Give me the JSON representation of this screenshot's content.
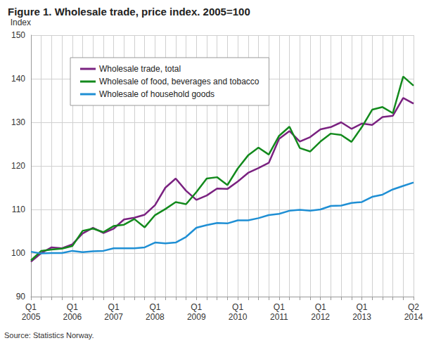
{
  "chart_data": {
    "type": "line",
    "title": "Figure 1. Wholesale trade, price index. 2005=100",
    "y_label": "Index",
    "source": "Source: Statistics Norway.",
    "categories": [
      "Q1\n2005",
      null,
      null,
      null,
      "Q1\n2006",
      null,
      null,
      null,
      "Q1\n2007",
      null,
      null,
      null,
      "Q1\n2008",
      null,
      null,
      null,
      "Q1\n2009",
      null,
      null,
      null,
      "Q1\n2010",
      null,
      null,
      null,
      "Q1\n2011",
      null,
      null,
      null,
      "Q1\n2012",
      null,
      null,
      null,
      "Q1\n2013",
      null,
      null,
      null,
      null,
      "Q2\n2014"
    ],
    "series": [
      {
        "name": "Wholesale trade, total",
        "color": "#7a2280",
        "values": [
          98,
          100,
          101.3,
          101.1,
          102,
          104.5,
          105.8,
          104.6,
          105.6,
          107.7,
          108.1,
          108.8,
          111,
          115,
          117.1,
          114.3,
          112.2,
          113.2,
          114.8,
          114.7,
          116.4,
          118.4,
          119.5,
          120.7,
          126.2,
          128,
          125.6,
          126.6,
          128.4,
          128.9,
          130,
          128.5,
          129.7,
          129.4,
          131.2,
          131.5,
          135.6,
          134.3
        ]
      },
      {
        "name": "Wholesale of food, beverages and tobacco",
        "color": "#138a1d",
        "values": [
          98.3,
          100.5,
          100.8,
          101,
          101.6,
          105.1,
          105.6,
          104.8,
          106.2,
          106.5,
          107.8,
          105.9,
          108.7,
          110.1,
          111.7,
          111.2,
          114,
          117.1,
          117.4,
          115.6,
          119.4,
          122.4,
          124.2,
          122.6,
          126.9,
          129,
          124.1,
          123.3,
          125.6,
          127.4,
          127.1,
          125.5,
          128.9,
          132.9,
          133.5,
          132.1,
          140.5,
          138.4
        ]
      },
      {
        "name": "Wholesale of household goods",
        "color": "#1f8fd4",
        "values": [
          100.3,
          99.9,
          100,
          100,
          100.5,
          100.2,
          100.4,
          100.5,
          101.1,
          101.1,
          101.1,
          101.3,
          102.4,
          102.2,
          102.4,
          103.7,
          105.8,
          106.4,
          106.9,
          106.8,
          107.5,
          107.5,
          108,
          108.7,
          109,
          109.7,
          109.9,
          109.7,
          110,
          110.8,
          110.9,
          111.5,
          111.7,
          112.9,
          113.4,
          114.6,
          115.4,
          116.2
        ]
      }
    ],
    "ylim": [
      90,
      150
    ],
    "yticks": [
      90,
      100,
      110,
      120,
      130,
      140,
      150
    ],
    "grid": true,
    "legend": "upper left"
  }
}
